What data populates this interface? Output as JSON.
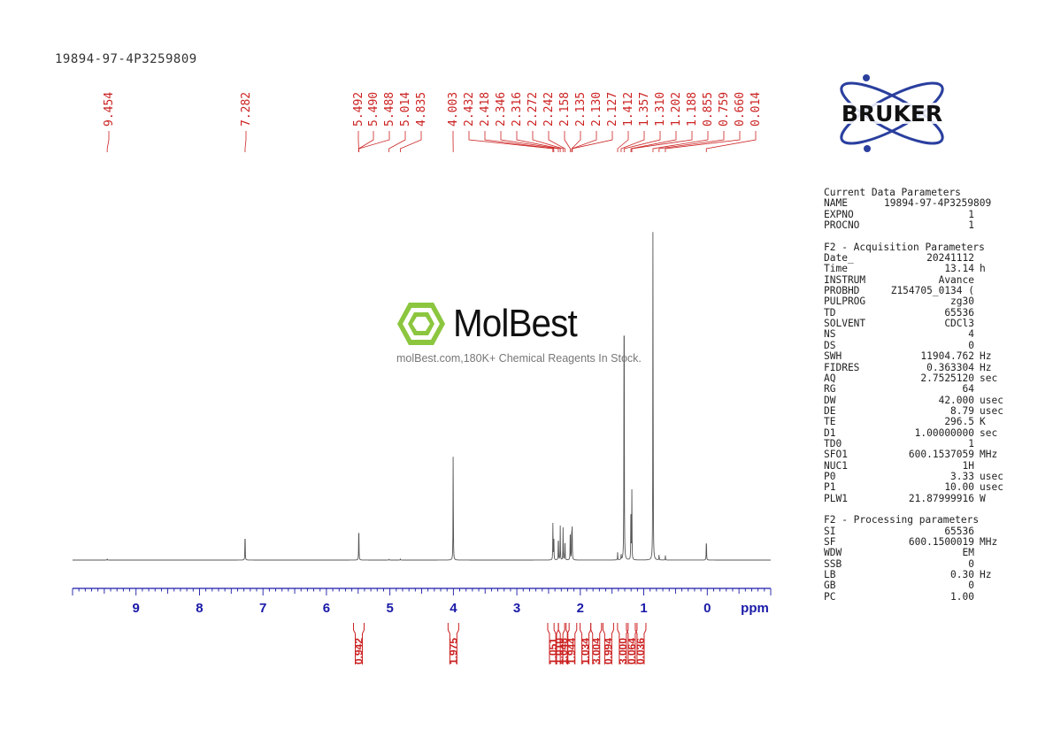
{
  "sample_id": "19894-97-4P3259809",
  "logo": {
    "brand": "BRUKER"
  },
  "watermark": {
    "name": "MolBest",
    "tagline": "molBest.com,180K+ Chemical Reagents In Stock."
  },
  "parameters": {
    "sections": [
      {
        "title": "Current Data Parameters",
        "rows": [
          [
            "NAME",
            "19894-97-4P3259809",
            ""
          ],
          [
            "EXPNO",
            "1",
            ""
          ],
          [
            "PROCNO",
            "1",
            ""
          ]
        ]
      },
      {
        "title": "F2 - Acquisition Parameters",
        "rows": [
          [
            "Date_",
            "20241112",
            ""
          ],
          [
            "Time",
            "13.14",
            "h"
          ],
          [
            "INSTRUM",
            "Avance",
            ""
          ],
          [
            "PROBHD",
            "Z154705_0134 (",
            ""
          ],
          [
            "PULPROG",
            "zg30",
            ""
          ],
          [
            "TD",
            "65536",
            ""
          ],
          [
            "SOLVENT",
            "CDCl3",
            ""
          ],
          [
            "NS",
            "4",
            ""
          ],
          [
            "DS",
            "0",
            ""
          ],
          [
            "SWH",
            "11904.762",
            "Hz"
          ],
          [
            "FIDRES",
            "0.363304",
            "Hz"
          ],
          [
            "AQ",
            "2.7525120",
            "sec"
          ],
          [
            "RG",
            "64",
            ""
          ],
          [
            "DW",
            "42.000",
            "usec"
          ],
          [
            "DE",
            "8.79",
            "usec"
          ],
          [
            "TE",
            "296.5",
            "K"
          ],
          [
            "D1",
            "1.00000000",
            "sec"
          ],
          [
            "TD0",
            "1",
            ""
          ],
          [
            "SFO1",
            "600.1537059",
            "MHz"
          ],
          [
            "NUC1",
            "1H",
            ""
          ],
          [
            "P0",
            "3.33",
            "usec"
          ],
          [
            "P1",
            "10.00",
            "usec"
          ],
          [
            "PLW1",
            "21.87999916",
            "W"
          ]
        ]
      },
      {
        "title": "F2 - Processing parameters",
        "rows": [
          [
            "SI",
            "65536",
            ""
          ],
          [
            "SF",
            "600.1500019",
            "MHz"
          ],
          [
            "WDW",
            "EM",
            ""
          ],
          [
            "SSB",
            "0",
            ""
          ],
          [
            "LB",
            "0.30",
            "Hz"
          ],
          [
            "GB",
            "0",
            ""
          ],
          [
            "PC",
            "1.00",
            ""
          ]
        ]
      }
    ]
  },
  "colors": {
    "peak_labels": "#cc2222",
    "axis": "#1a1aa8",
    "spectrum": "#555555",
    "logo_blue": "#2a3f9e"
  },
  "chart_data": {
    "type": "line",
    "xlabel": "ppm",
    "xlim": [
      10.0,
      -1.0
    ],
    "x_reversed": true,
    "ticks": [
      9,
      8,
      7,
      6,
      5,
      4,
      3,
      2,
      1,
      0
    ],
    "peak_labels": [
      "9.454",
      "7.282",
      "5.492",
      "5.490",
      "5.488",
      "5.014",
      "4.835",
      "4.003",
      "2.432",
      "2.418",
      "2.346",
      "2.316",
      "2.272",
      "2.242",
      "2.158",
      "2.135",
      "2.130",
      "2.127",
      "1.412",
      "1.357",
      "1.310",
      "1.202",
      "1.188",
      "0.855",
      "0.759",
      "0.660",
      "0.014"
    ],
    "peaks": [
      {
        "ppm": 9.454,
        "height": 0.004
      },
      {
        "ppm": 7.282,
        "height": 0.09
      },
      {
        "ppm": 5.49,
        "height": 0.115
      },
      {
        "ppm": 5.014,
        "height": 0.003
      },
      {
        "ppm": 4.835,
        "height": 0.003
      },
      {
        "ppm": 4.003,
        "height": 0.315
      },
      {
        "ppm": 2.432,
        "height": 0.095
      },
      {
        "ppm": 2.418,
        "height": 0.085
      },
      {
        "ppm": 2.346,
        "height": 0.08
      },
      {
        "ppm": 2.316,
        "height": 0.09
      },
      {
        "ppm": 2.272,
        "height": 0.085
      },
      {
        "ppm": 2.242,
        "height": 0.07
      },
      {
        "ppm": 2.158,
        "height": 0.105
      },
      {
        "ppm": 2.135,
        "height": 0.07
      },
      {
        "ppm": 2.13,
        "height": 0.06
      },
      {
        "ppm": 2.127,
        "height": 0.05
      },
      {
        "ppm": 1.412,
        "height": 0.02
      },
      {
        "ppm": 1.357,
        "height": 0.015
      },
      {
        "ppm": 1.31,
        "height": 0.965
      },
      {
        "ppm": 1.202,
        "height": 0.185
      },
      {
        "ppm": 1.188,
        "height": 0.18
      },
      {
        "ppm": 0.855,
        "height": 1.0
      },
      {
        "ppm": 0.759,
        "height": 0.015
      },
      {
        "ppm": 0.66,
        "height": 0.012
      },
      {
        "ppm": 0.014,
        "height": 0.07
      }
    ],
    "integrals": [
      {
        "ppm": 5.49,
        "value": "0.942"
      },
      {
        "ppm": 4.0,
        "value": "1.975"
      },
      {
        "ppm": 2.43,
        "value": "1.051"
      },
      {
        "ppm": 2.33,
        "value": "1.010"
      },
      {
        "ppm": 2.26,
        "value": "1.048"
      },
      {
        "ppm": 2.14,
        "value": "1.944"
      },
      {
        "ppm": 1.92,
        "value": "1.034"
      },
      {
        "ppm": 1.75,
        "value": "3.004"
      },
      {
        "ppm": 1.56,
        "value": "0.994"
      },
      {
        "ppm": 1.33,
        "value": "3.000"
      },
      {
        "ppm": 1.19,
        "value": "0.064"
      },
      {
        "ppm": 1.05,
        "value": "0.036"
      }
    ]
  }
}
